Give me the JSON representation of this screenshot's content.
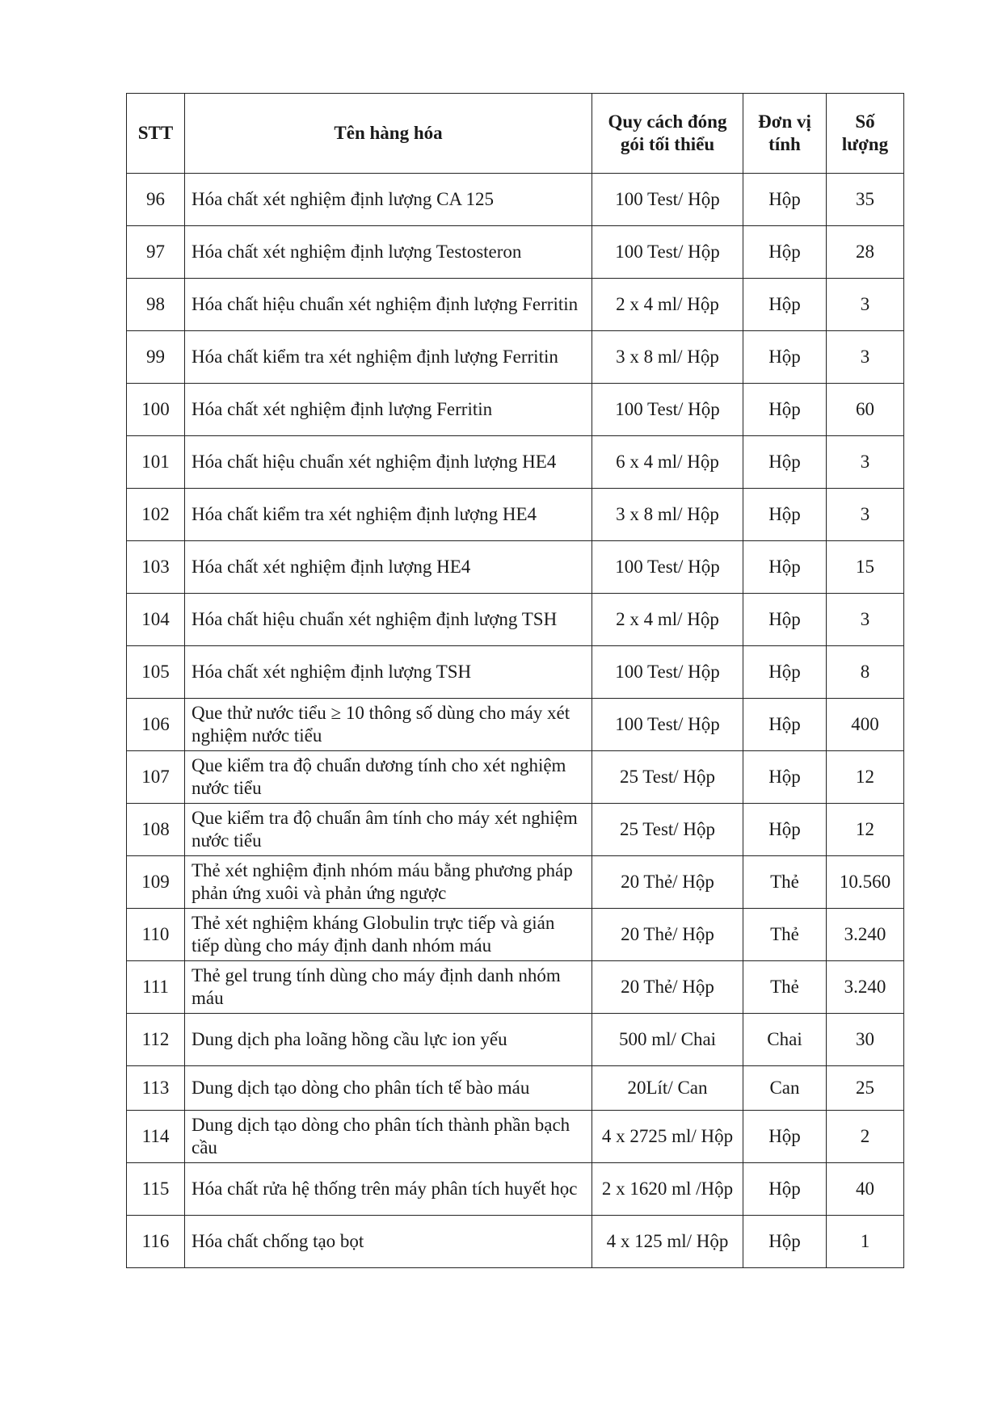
{
  "table": {
    "headers": [
      "STT",
      "Tên hàng hóa",
      "Quy cách đóng gói tối thiểu",
      "Đơn vị tính",
      "Số lượng"
    ],
    "rows": [
      [
        "96",
        "Hóa chất xét nghiệm định lượng CA 125",
        "100 Test/ Hộp",
        "Hộp",
        "35"
      ],
      [
        "97",
        "Hóa chất xét nghiệm định lượng Testosteron",
        "100 Test/ Hộp",
        "Hộp",
        "28"
      ],
      [
        "98",
        "Hóa chất hiệu chuẩn xét nghiệm định lượng Ferritin",
        "2 x 4 ml/ Hộp",
        "Hộp",
        "3"
      ],
      [
        "99",
        "Hóa chất kiểm tra xét nghiệm định lượng Ferritin",
        "3 x 8 ml/ Hộp",
        "Hộp",
        "3"
      ],
      [
        "100",
        "Hóa chất xét nghiệm định lượng Ferritin",
        "100 Test/ Hộp",
        "Hộp",
        "60"
      ],
      [
        "101",
        "Hóa chất hiệu chuẩn xét nghiệm định lượng HE4",
        "6 x 4 ml/ Hộp",
        "Hộp",
        "3"
      ],
      [
        "102",
        "Hóa chất kiểm tra xét nghiệm định lượng HE4",
        "3 x 8 ml/ Hộp",
        "Hộp",
        "3"
      ],
      [
        "103",
        "Hóa chất xét nghiệm định lượng HE4",
        "100 Test/ Hộp",
        "Hộp",
        "15"
      ],
      [
        "104",
        "Hóa chất hiệu chuẩn xét nghiệm định lượng TSH",
        "2 x 4 ml/ Hộp",
        "Hộp",
        "3"
      ],
      [
        "105",
        "Hóa chất xét nghiệm định lượng TSH",
        "100 Test/ Hộp",
        "Hộp",
        "8"
      ],
      [
        "106",
        "Que thử nước tiểu ≥ 10 thông số dùng cho máy xét nghiệm nước tiểu",
        "100 Test/ Hộp",
        "Hộp",
        "400"
      ],
      [
        "107",
        "Que kiểm tra độ chuẩn dương tính cho xét nghiệm nước tiểu",
        "25 Test/ Hộp",
        "Hộp",
        "12"
      ],
      [
        "108",
        "Que kiểm tra độ chuẩn âm tính cho máy xét nghiệm nước tiểu",
        "25 Test/ Hộp",
        "Hộp",
        "12"
      ],
      [
        "109",
        "Thẻ xét nghiệm định nhóm máu bằng phương pháp phản ứng xuôi và phản ứng ngược",
        "20 Thẻ/ Hộp",
        "Thẻ",
        "10.560"
      ],
      [
        "110",
        "Thẻ xét nghiệm kháng Globulin trực tiếp và gián tiếp dùng cho máy định danh nhóm máu",
        "20 Thẻ/ Hộp",
        "Thẻ",
        "3.240"
      ],
      [
        "111",
        "Thẻ gel trung tính dùng cho máy định danh nhóm máu",
        "20 Thẻ/ Hộp",
        "Thẻ",
        "3.240"
      ],
      [
        "112",
        "Dung dịch pha loãng hồng cầu lực ion yếu",
        "500 ml/ Chai",
        "Chai",
        "30"
      ],
      [
        "113",
        "Dung dịch tạo dòng cho phân tích tế bào máu",
        "20Lít/ Can",
        "Can",
        "25"
      ],
      [
        "114",
        "Dung dịch tạo dòng cho phân tích thành phần bạch cầu",
        "4 x 2725 ml/ Hộp",
        "Hộp",
        "2"
      ],
      [
        "115",
        "Hóa chất rửa hệ thống trên máy phân tích huyết học",
        "2 x 1620 ml /Hộp",
        "Hộp",
        "40"
      ],
      [
        "116",
        "Hóa chất chống tạo bọt",
        "4 x 125 ml/ Hộp",
        "Hộp",
        "1"
      ]
    ]
  }
}
